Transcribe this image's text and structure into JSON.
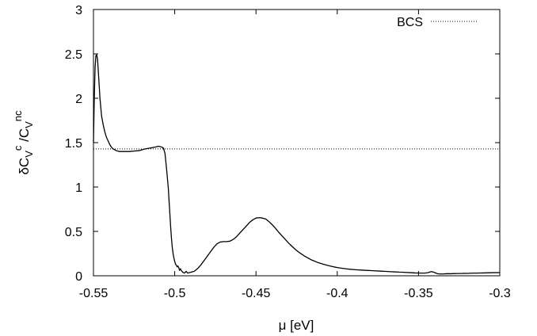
{
  "chart_data": {
    "type": "line",
    "xlabel": "μ [eV]",
    "ylabel": {
      "base1": "δC",
      "sub1": "V",
      "sup1": "c",
      "slash": " /C",
      "sub2": "V",
      "sup2": "nc"
    },
    "xlim": [
      -0.55,
      -0.3
    ],
    "ylim": [
      0,
      3
    ],
    "xticks": [
      -0.55,
      -0.5,
      -0.45,
      -0.4,
      -0.35,
      -0.3
    ],
    "xtick_labels": [
      "-0.55",
      "-0.5",
      "-0.45",
      "-0.4",
      "-0.35",
      "-0.3"
    ],
    "yticks": [
      0,
      0.5,
      1,
      1.5,
      2,
      2.5,
      3
    ],
    "ytick_labels": [
      "0",
      "0.5",
      "1",
      "1.5",
      "2",
      "2.5",
      "3"
    ],
    "grid": false,
    "legend_position": "top-right",
    "series": [
      {
        "color": "#000000",
        "style": "solid",
        "x": [
          -0.55,
          -0.5495,
          -0.549,
          -0.5485,
          -0.548,
          -0.5475,
          -0.547,
          -0.5465,
          -0.546,
          -0.545,
          -0.544,
          -0.543,
          -0.542,
          -0.541,
          -0.54,
          -0.539,
          -0.538,
          -0.537,
          -0.536,
          -0.535,
          -0.534,
          -0.532,
          -0.53,
          -0.528,
          -0.525,
          -0.522,
          -0.52,
          -0.518,
          -0.515,
          -0.512,
          -0.51,
          -0.508,
          -0.507,
          -0.506,
          -0.505,
          -0.504,
          -0.5035,
          -0.503,
          -0.5025,
          -0.502,
          -0.5015,
          -0.501,
          -0.5005,
          -0.5,
          -0.4995,
          -0.499,
          -0.4985,
          -0.498,
          -0.4975,
          -0.497,
          -0.4965,
          -0.496,
          -0.495,
          -0.494,
          -0.493,
          -0.492,
          -0.49,
          -0.488,
          -0.486,
          -0.484,
          -0.482,
          -0.48,
          -0.478,
          -0.476,
          -0.474,
          -0.472,
          -0.47,
          -0.468,
          -0.466,
          -0.464,
          -0.462,
          -0.46,
          -0.458,
          -0.456,
          -0.454,
          -0.452,
          -0.45,
          -0.448,
          -0.446,
          -0.444,
          -0.442,
          -0.44,
          -0.438,
          -0.436,
          -0.434,
          -0.432,
          -0.43,
          -0.428,
          -0.426,
          -0.424,
          -0.422,
          -0.42,
          -0.418,
          -0.416,
          -0.414,
          -0.412,
          -0.41,
          -0.408,
          -0.406,
          -0.404,
          -0.402,
          -0.4,
          -0.398,
          -0.395,
          -0.392,
          -0.39,
          -0.387,
          -0.385,
          -0.382,
          -0.38,
          -0.377,
          -0.375,
          -0.372,
          -0.37,
          -0.367,
          -0.365,
          -0.362,
          -0.36,
          -0.357,
          -0.355,
          -0.352,
          -0.35,
          -0.348,
          -0.346,
          -0.344,
          -0.343,
          -0.342,
          -0.341,
          -0.34,
          -0.339,
          -0.338,
          -0.337,
          -0.336,
          -0.335,
          -0.334,
          -0.333,
          -0.332,
          -0.33,
          -0.328,
          -0.326,
          -0.324,
          -0.322,
          -0.32,
          -0.318,
          -0.316,
          -0.314,
          -0.312,
          -0.31,
          -0.308,
          -0.306,
          -0.304,
          -0.302,
          -0.3
        ],
        "y": [
          1.5,
          2.0,
          2.35,
          2.48,
          2.49,
          2.44,
          2.3,
          2.15,
          2.0,
          1.8,
          1.7,
          1.62,
          1.56,
          1.52,
          1.48,
          1.45,
          1.43,
          1.42,
          1.41,
          1.405,
          1.4,
          1.4,
          1.4,
          1.4,
          1.405,
          1.41,
          1.42,
          1.43,
          1.44,
          1.45,
          1.46,
          1.45,
          1.44,
          1.38,
          1.2,
          1.0,
          0.85,
          0.7,
          0.55,
          0.42,
          0.32,
          0.25,
          0.2,
          0.16,
          0.13,
          0.12,
          0.1,
          0.11,
          0.09,
          0.06,
          0.08,
          0.06,
          0.04,
          0.03,
          0.05,
          0.03,
          0.04,
          0.05,
          0.08,
          0.12,
          0.17,
          0.22,
          0.27,
          0.32,
          0.36,
          0.38,
          0.385,
          0.385,
          0.39,
          0.41,
          0.44,
          0.48,
          0.52,
          0.56,
          0.6,
          0.63,
          0.65,
          0.655,
          0.65,
          0.64,
          0.61,
          0.575,
          0.535,
          0.49,
          0.45,
          0.41,
          0.37,
          0.335,
          0.3,
          0.27,
          0.245,
          0.22,
          0.2,
          0.18,
          0.165,
          0.15,
          0.138,
          0.127,
          0.117,
          0.108,
          0.1,
          0.093,
          0.087,
          0.079,
          0.073,
          0.07,
          0.066,
          0.064,
          0.061,
          0.059,
          0.056,
          0.054,
          0.051,
          0.049,
          0.046,
          0.044,
          0.041,
          0.04,
          0.037,
          0.035,
          0.032,
          0.031,
          0.03,
          0.03,
          0.036,
          0.042,
          0.047,
          0.042,
          0.036,
          0.028,
          0.022,
          0.02,
          0.02,
          0.02,
          0.022,
          0.023,
          0.024,
          0.023,
          0.025,
          0.026,
          0.026,
          0.028,
          0.027,
          0.029,
          0.03,
          0.03,
          0.031,
          0.032,
          0.033,
          0.034,
          0.035,
          0.035,
          0.036
        ]
      },
      {
        "name": "BCS",
        "color": "#000000",
        "style": "dotted",
        "x": [
          -0.55,
          -0.3
        ],
        "y": [
          1.43,
          1.43
        ]
      }
    ]
  }
}
